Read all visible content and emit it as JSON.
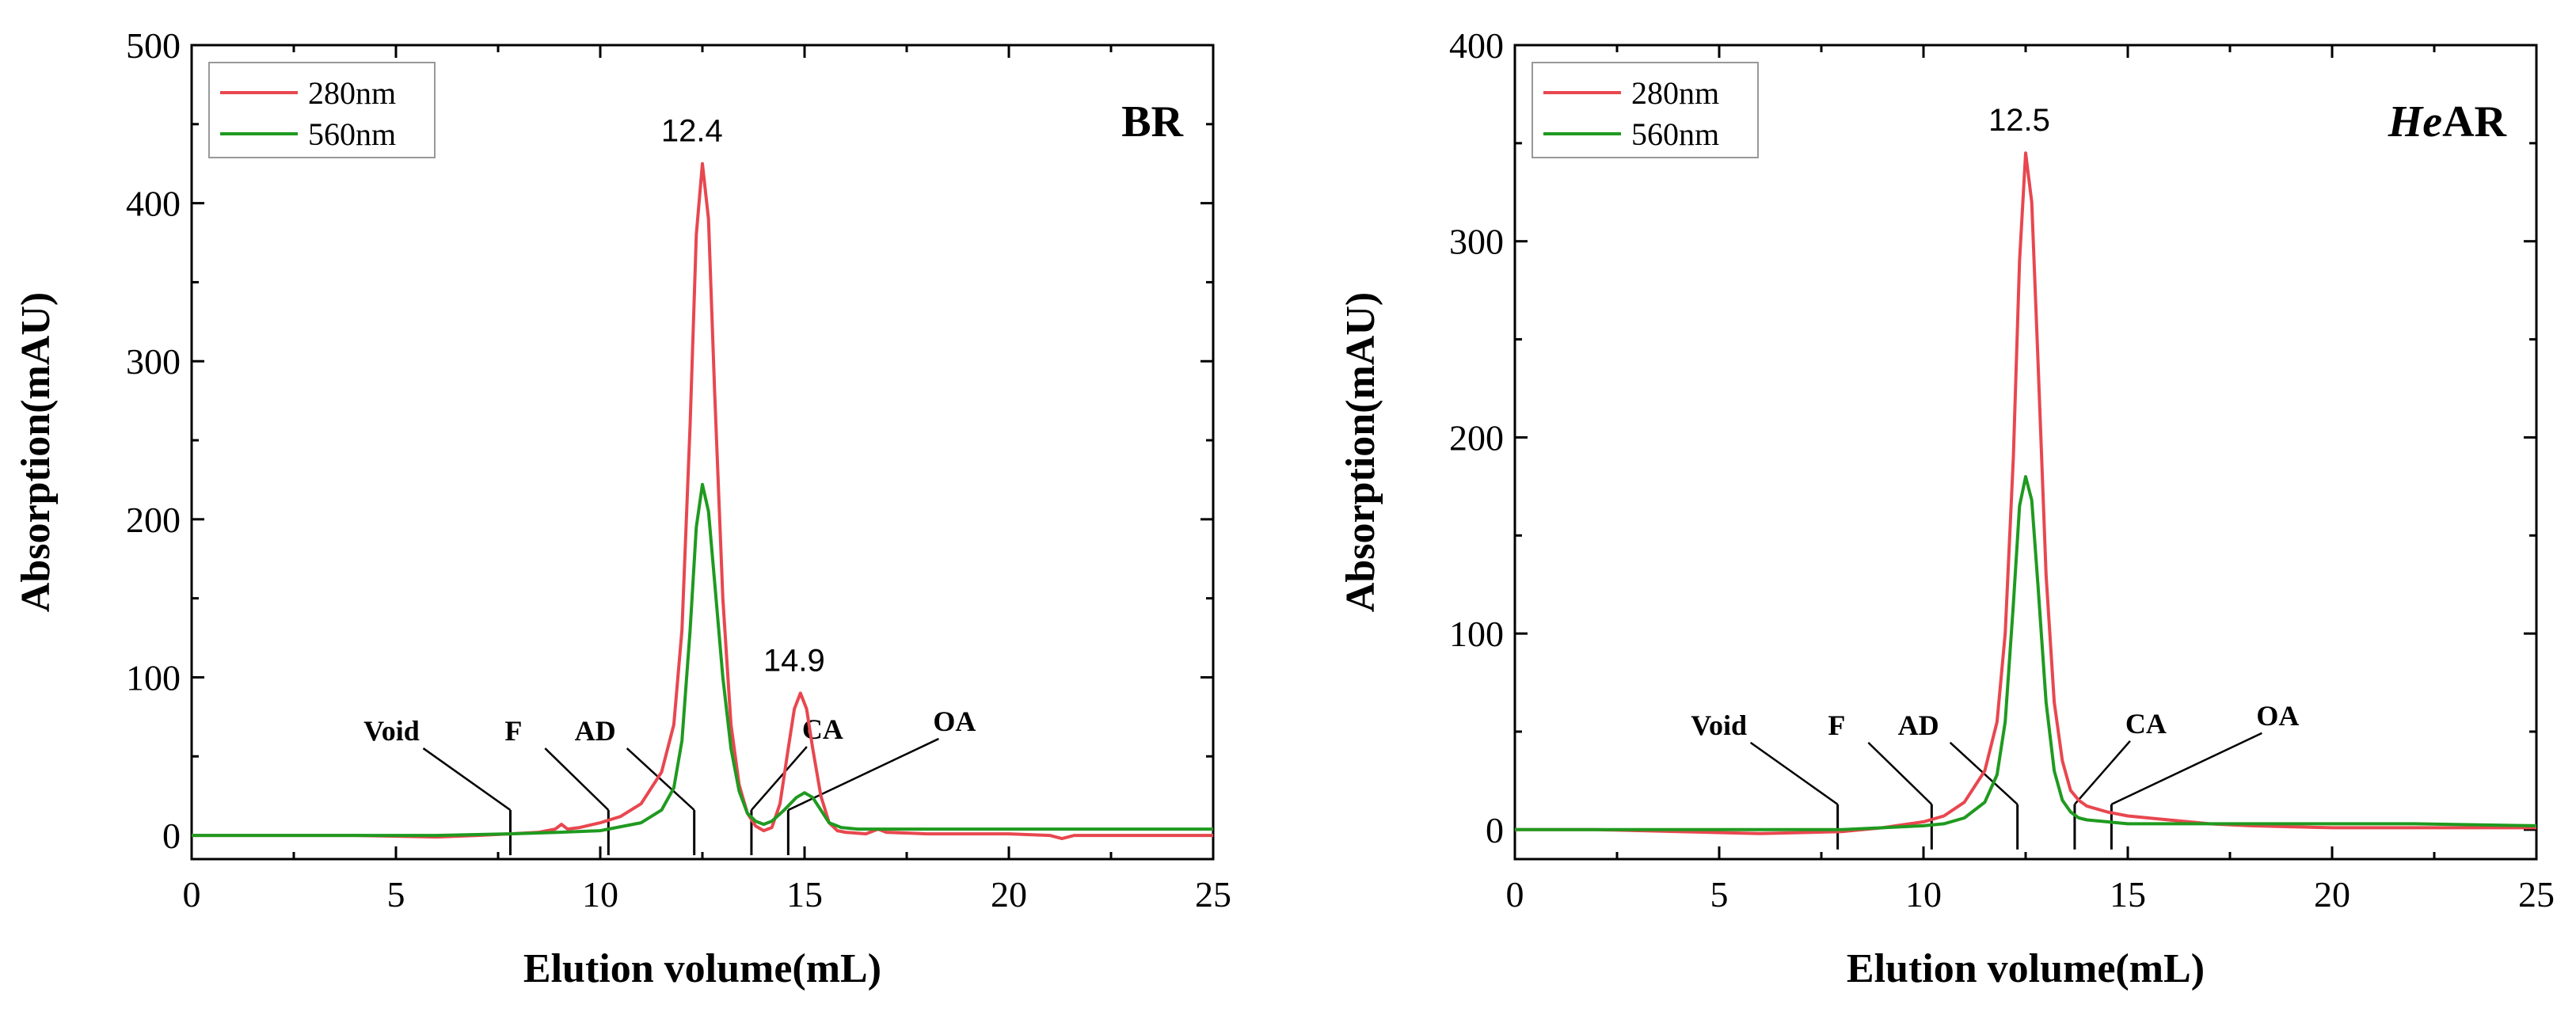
{
  "chart_data": [
    {
      "type": "line",
      "title": "BR",
      "title_italic_part": "",
      "xlabel": "Elution volume(mL)",
      "ylabel": "Absorption(mAU)",
      "xlim": [
        0,
        25
      ],
      "ylim": [
        -15,
        500
      ],
      "xticks": [
        0,
        5,
        10,
        15,
        20,
        25
      ],
      "yticks": [
        0,
        100,
        200,
        300,
        400,
        500
      ],
      "legend_position": "top-left",
      "series": [
        {
          "name": "280nm",
          "color": "#e8474f",
          "x": [
            0,
            2,
            4,
            6,
            7,
            7.8,
            8.5,
            8.9,
            9.05,
            9.2,
            9.5,
            10,
            10.5,
            11,
            11.5,
            11.8,
            12.0,
            12.2,
            12.35,
            12.5,
            12.65,
            12.8,
            13.0,
            13.2,
            13.4,
            13.6,
            13.8,
            14.0,
            14.2,
            14.4,
            14.6,
            14.75,
            14.9,
            15.05,
            15.2,
            15.4,
            15.6,
            15.8,
            16.0,
            16.5,
            16.8,
            17.0,
            18,
            20,
            21,
            21.3,
            21.6,
            22,
            23,
            25
          ],
          "y": [
            0,
            0,
            0,
            -1,
            0,
            1,
            2,
            4,
            7,
            4,
            5,
            8,
            12,
            20,
            40,
            70,
            130,
            260,
            380,
            425,
            390,
            280,
            150,
            70,
            32,
            14,
            6,
            3,
            5,
            20,
            55,
            80,
            90,
            80,
            55,
            25,
            8,
            3,
            2,
            1,
            4,
            2,
            1,
            1,
            0,
            -2,
            0,
            0,
            0,
            0
          ]
        },
        {
          "name": "560nm",
          "color": "#1f9a1f",
          "x": [
            0,
            2,
            4,
            6,
            7.8,
            9,
            10,
            11,
            11.5,
            11.8,
            12.0,
            12.2,
            12.35,
            12.5,
            12.65,
            12.8,
            13.0,
            13.2,
            13.4,
            13.6,
            13.8,
            14.0,
            14.2,
            14.5,
            14.8,
            15.0,
            15.2,
            15.4,
            15.6,
            15.9,
            16.3,
            17,
            18,
            20,
            22,
            25
          ],
          "y": [
            0,
            0,
            0,
            0,
            1,
            2,
            3,
            8,
            16,
            30,
            60,
            130,
            195,
            222,
            205,
            160,
            100,
            55,
            28,
            14,
            9,
            7,
            9,
            16,
            24,
            27,
            24,
            16,
            8,
            5,
            4,
            4,
            4,
            4,
            4,
            4
          ]
        }
      ],
      "peak_labels": [
        {
          "text": "12.4",
          "x": 12.4,
          "y": 425
        },
        {
          "text": "14.9",
          "x": 14.9,
          "y": 90
        }
      ],
      "markers": [
        {
          "label": "Void",
          "x": 7.8
        },
        {
          "label": "F",
          "x": 10.2
        },
        {
          "label": "AD",
          "x": 12.3
        },
        {
          "label": "CA",
          "x": 13.7
        },
        {
          "label": "OA",
          "x": 14.6
        }
      ]
    },
    {
      "type": "line",
      "title": "AR",
      "title_italic_part": "He",
      "xlabel": "Elution volume(mL)",
      "ylabel": "Absorption(mAU)",
      "xlim": [
        0,
        25
      ],
      "ylim": [
        -15,
        400
      ],
      "xticks": [
        0,
        5,
        10,
        15,
        20,
        25
      ],
      "yticks": [
        0,
        100,
        200,
        300,
        400
      ],
      "legend_position": "top-left",
      "series": [
        {
          "name": "280nm",
          "color": "#e8474f",
          "x": [
            0,
            2,
            4,
            6,
            8,
            9,
            10,
            10.5,
            11,
            11.5,
            11.8,
            12.0,
            12.2,
            12.35,
            12.5,
            12.65,
            12.8,
            13.0,
            13.2,
            13.4,
            13.6,
            13.8,
            14.0,
            14.5,
            15,
            16,
            17,
            18,
            20,
            22,
            24,
            25
          ],
          "y": [
            0,
            0,
            -1,
            -2,
            -1,
            1,
            4,
            7,
            14,
            30,
            55,
            100,
            190,
            290,
            345,
            320,
            240,
            130,
            65,
            35,
            20,
            15,
            12,
            9,
            7,
            5,
            3,
            2,
            1,
            1,
            1,
            1
          ]
        },
        {
          "name": "560nm",
          "color": "#1f9a1f",
          "x": [
            0,
            2,
            4,
            6,
            8,
            9,
            10,
            10.5,
            11,
            11.5,
            11.8,
            12.0,
            12.2,
            12.35,
            12.5,
            12.65,
            12.8,
            13.0,
            13.2,
            13.4,
            13.6,
            13.8,
            14.0,
            14.5,
            15,
            16,
            18,
            20,
            22,
            25
          ],
          "y": [
            0,
            0,
            0,
            0,
            0,
            1,
            2,
            3,
            6,
            14,
            28,
            55,
            115,
            165,
            180,
            168,
            125,
            65,
            30,
            15,
            9,
            6,
            5,
            4,
            3,
            3,
            3,
            3,
            3,
            2
          ]
        }
      ],
      "peak_labels": [
        {
          "text": "12.5",
          "x": 12.5,
          "y": 345
        }
      ],
      "markers": [
        {
          "label": "Void",
          "x": 7.9
        },
        {
          "label": "F",
          "x": 10.2
        },
        {
          "label": "AD",
          "x": 12.3
        },
        {
          "label": "CA",
          "x": 13.7
        },
        {
          "label": "OA",
          "x": 14.6
        }
      ]
    }
  ]
}
